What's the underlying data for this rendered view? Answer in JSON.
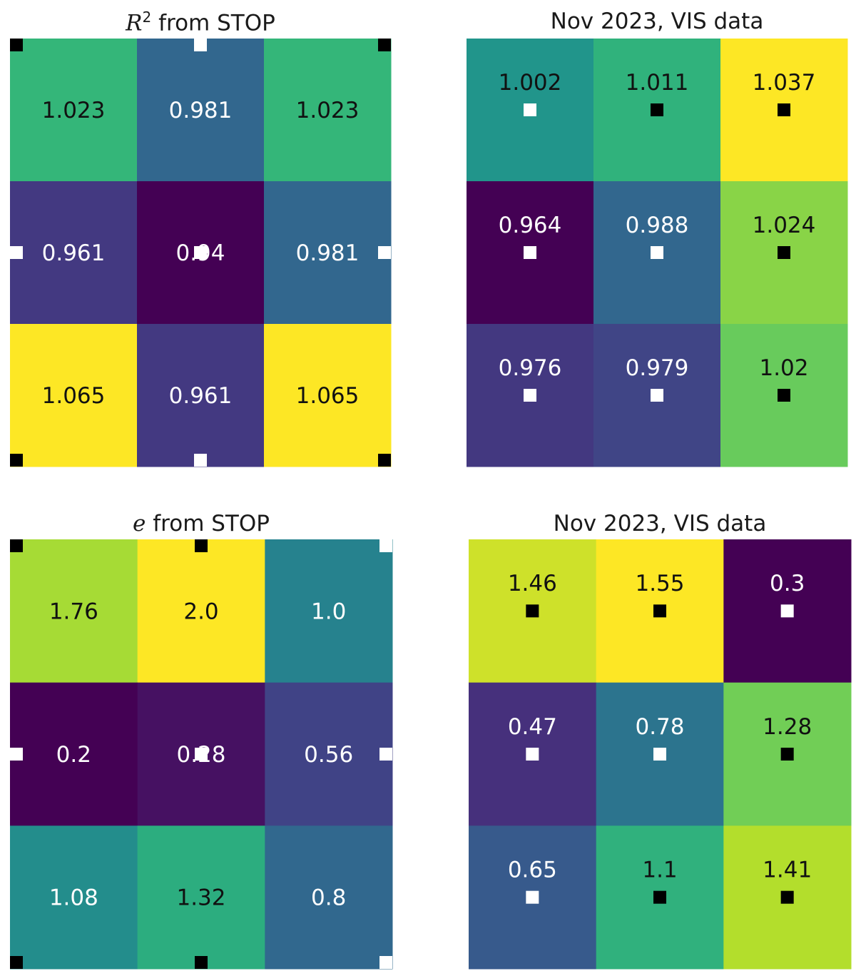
{
  "chart_data": [
    {
      "type": "heatmap",
      "title": "R² from STOP",
      "title_symbol": "R",
      "title_superscript": "2",
      "title_rest": " from STOP",
      "rows": 3,
      "cols": 3,
      "values": [
        [
          1.023,
          0.981,
          1.023
        ],
        [
          0.961,
          0.94,
          0.981
        ],
        [
          1.065,
          0.961,
          1.065
        ]
      ],
      "labels": [
        [
          "1.023",
          "0.981",
          "1.023"
        ],
        [
          "0.961",
          "0.94",
          "0.981"
        ],
        [
          "1.065",
          "0.961",
          "1.065"
        ]
      ],
      "colormap": "viridis",
      "markers": [
        {
          "col": 0,
          "row": 0,
          "color": "black"
        },
        {
          "col": 1.5,
          "row": 0,
          "color": "white"
        },
        {
          "col": 3,
          "row": 0,
          "color": "black"
        },
        {
          "col": 0,
          "row": 1.5,
          "color": "white"
        },
        {
          "col": 1.5,
          "row": 1.5,
          "color": "white"
        },
        {
          "col": 3,
          "row": 1.5,
          "color": "white"
        },
        {
          "col": 0,
          "row": 3,
          "color": "black"
        },
        {
          "col": 1.5,
          "row": 3,
          "color": "white"
        },
        {
          "col": 3,
          "row": 3,
          "color": "black"
        }
      ]
    },
    {
      "type": "heatmap",
      "title": "Nov 2023, VIS data",
      "rows": 3,
      "cols": 3,
      "values": [
        [
          1.002,
          1.011,
          1.037
        ],
        [
          0.964,
          0.988,
          1.024
        ],
        [
          0.976,
          0.979,
          1.02
        ]
      ],
      "labels": [
        [
          "1.002",
          "1.011",
          "1.037"
        ],
        [
          "0.964",
          "0.988",
          "1.024"
        ],
        [
          "0.976",
          "0.979",
          "1.02"
        ]
      ],
      "colormap": "viridis",
      "markers": [
        {
          "col": 0.5,
          "row": 0.5,
          "color": "white"
        },
        {
          "col": 1.5,
          "row": 0.5,
          "color": "black"
        },
        {
          "col": 2.5,
          "row": 0.5,
          "color": "black"
        },
        {
          "col": 0.5,
          "row": 1.5,
          "color": "white"
        },
        {
          "col": 1.5,
          "row": 1.5,
          "color": "white"
        },
        {
          "col": 2.5,
          "row": 1.5,
          "color": "black"
        },
        {
          "col": 0.5,
          "row": 2.5,
          "color": "white"
        },
        {
          "col": 1.5,
          "row": 2.5,
          "color": "white"
        },
        {
          "col": 2.5,
          "row": 2.5,
          "color": "black"
        }
      ]
    },
    {
      "type": "heatmap",
      "title": "e from STOP",
      "title_symbol": "e",
      "title_rest": " from STOP",
      "rows": 3,
      "cols": 3,
      "values": [
        [
          1.76,
          2.0,
          1.0
        ],
        [
          0.2,
          0.28,
          0.56
        ],
        [
          1.08,
          1.32,
          0.8
        ]
      ],
      "labels": [
        [
          "1.76",
          "2.0",
          "1.0"
        ],
        [
          "0.2",
          "0.28",
          "0.56"
        ],
        [
          "1.08",
          "1.32",
          "0.8"
        ]
      ],
      "colormap": "viridis",
      "markers": [
        {
          "col": 0,
          "row": 0,
          "color": "black"
        },
        {
          "col": 1.5,
          "row": 0,
          "color": "black"
        },
        {
          "col": 3,
          "row": 0,
          "color": "white"
        },
        {
          "col": 0,
          "row": 1.5,
          "color": "white"
        },
        {
          "col": 1.5,
          "row": 1.5,
          "color": "white"
        },
        {
          "col": 3,
          "row": 1.5,
          "color": "white"
        },
        {
          "col": 0,
          "row": 3,
          "color": "black"
        },
        {
          "col": 1.5,
          "row": 3,
          "color": "black"
        },
        {
          "col": 3,
          "row": 3,
          "color": "white"
        }
      ]
    },
    {
      "type": "heatmap",
      "title": "Nov 2023, VIS data",
      "rows": 3,
      "cols": 3,
      "values": [
        [
          1.46,
          1.55,
          0.3
        ],
        [
          0.47,
          0.78,
          1.28
        ],
        [
          0.65,
          1.1,
          1.41
        ]
      ],
      "labels": [
        [
          "1.46",
          "1.55",
          "0.3"
        ],
        [
          "0.47",
          "0.78",
          "1.28"
        ],
        [
          "0.65",
          "1.1",
          "1.41"
        ]
      ],
      "colormap": "viridis",
      "markers": [
        {
          "col": 0.5,
          "row": 0.5,
          "color": "black"
        },
        {
          "col": 1.5,
          "row": 0.5,
          "color": "black"
        },
        {
          "col": 2.5,
          "row": 0.5,
          "color": "white"
        },
        {
          "col": 0.5,
          "row": 1.5,
          "color": "white"
        },
        {
          "col": 1.5,
          "row": 1.5,
          "color": "white"
        },
        {
          "col": 2.5,
          "row": 1.5,
          "color": "black"
        },
        {
          "col": 0.5,
          "row": 2.5,
          "color": "white"
        },
        {
          "col": 1.5,
          "row": 2.5,
          "color": "black"
        },
        {
          "col": 2.5,
          "row": 2.5,
          "color": "black"
        }
      ]
    }
  ]
}
